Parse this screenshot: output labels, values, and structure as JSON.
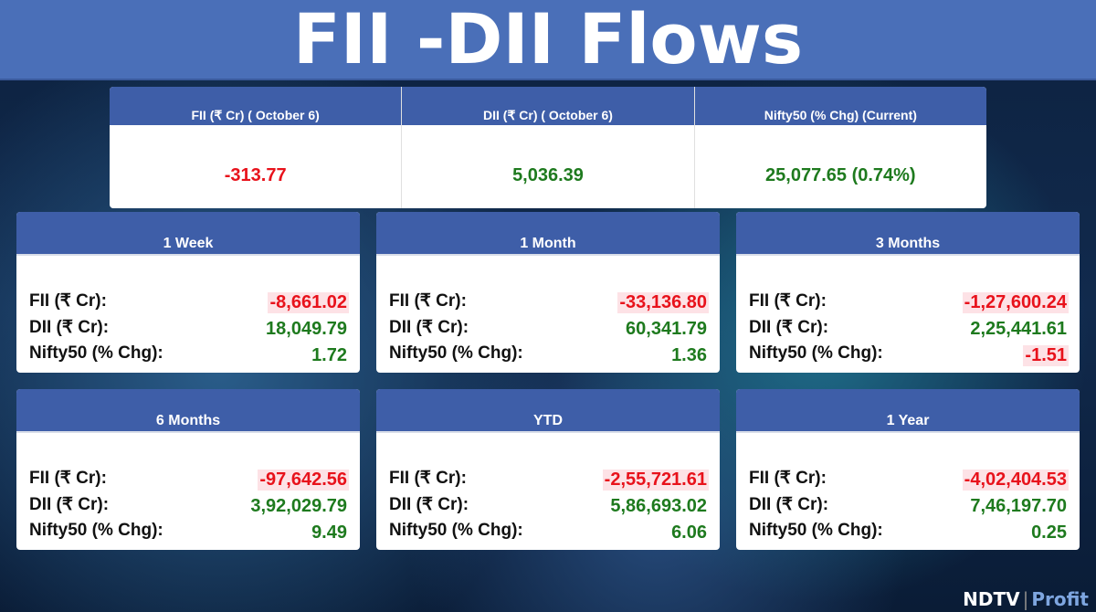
{
  "header": {
    "title": "FII -DII Flows"
  },
  "summary": {
    "columns": [
      {
        "label": "FII (₹ Cr) ( October 6)",
        "value": "-313.77"
      },
      {
        "label": "DII (₹ Cr) ( October 6)",
        "value": "5,036.39"
      },
      {
        "label": "Nifty50 (% Chg) (Current)",
        "value": "25,077.65 (0.74%)"
      }
    ]
  },
  "panels": [
    {
      "period": "1 Week",
      "rows": [
        [
          "FII (₹ Cr):",
          "-8,661.02"
        ],
        [
          "DII (₹ Cr):",
          "18,049.79"
        ],
        [
          "Nifty50 (% Chg):",
          "1.72"
        ]
      ]
    },
    {
      "period": "1 Month",
      "rows": [
        [
          "FII (₹ Cr):",
          "-33,136.80"
        ],
        [
          "DII (₹ Cr):",
          "60,341.79"
        ],
        [
          "Nifty50 (% Chg):",
          "1.36"
        ]
      ]
    },
    {
      "period": "3 Months",
      "rows": [
        [
          "FII (₹ Cr):",
          "-1,27,600.24"
        ],
        [
          "DII (₹ Cr):",
          "2,25,441.61"
        ],
        [
          "Nifty50 (% Chg):",
          "-1.51"
        ]
      ]
    },
    {
      "period": "6 Months",
      "rows": [
        [
          "FII (₹ Cr):",
          "-97,642.56"
        ],
        [
          "DII (₹ Cr):",
          "3,92,029.79"
        ],
        [
          "Nifty50 (% Chg):",
          "9.49"
        ]
      ]
    },
    {
      "period": "YTD",
      "rows": [
        [
          "FII (₹ Cr):",
          "-2,55,721.61"
        ],
        [
          "DII (₹ Cr):",
          "5,86,693.02"
        ],
        [
          "Nifty50 (% Chg):",
          "6.06"
        ]
      ]
    },
    {
      "period": "1 Year",
      "rows": [
        [
          "FII (₹ Cr):",
          "-4,02,404.53"
        ],
        [
          "DII (₹ Cr):",
          "7,46,197.70"
        ],
        [
          "Nifty50 (% Chg):",
          "0.25"
        ]
      ]
    }
  ],
  "logo": {
    "brand": "NDTV",
    "product": "Profit"
  }
}
